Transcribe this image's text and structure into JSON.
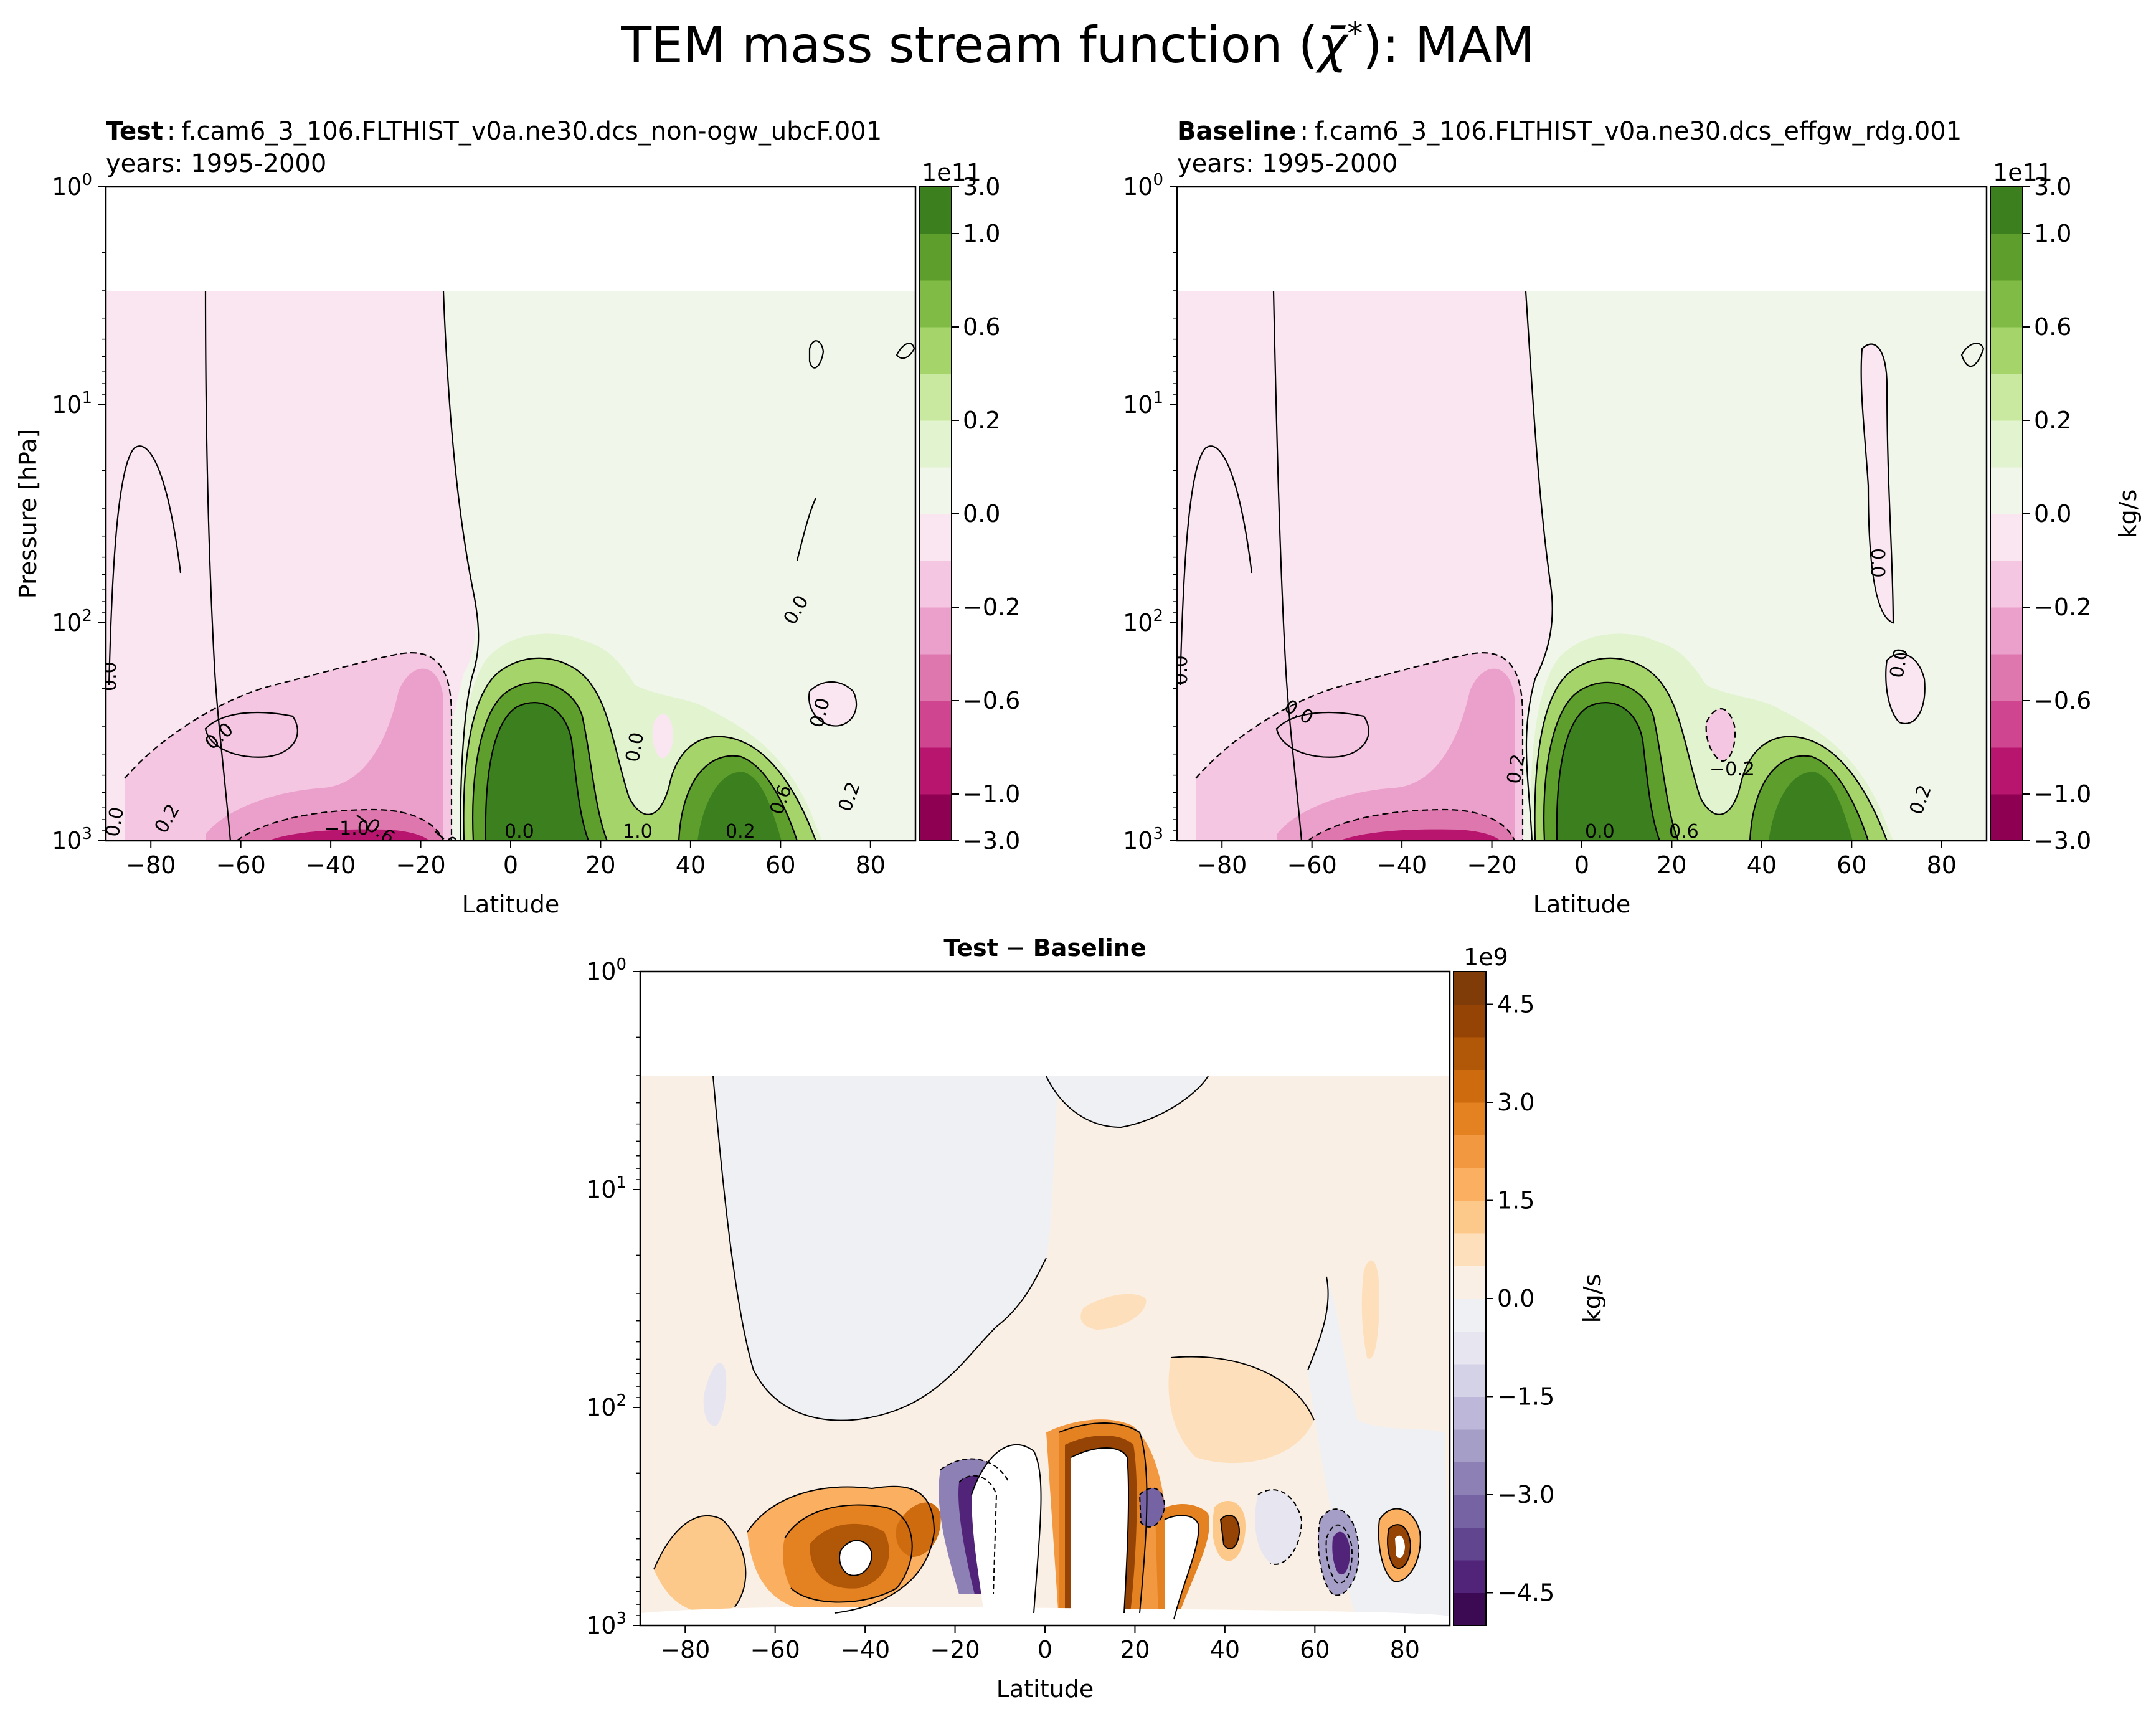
{
  "figure": {
    "title": "TEM mass stream function (χ̄*): MAM",
    "title_main": "TEM mass stream function (",
    "title_symbol": "χ̄",
    "title_sup": "*",
    "title_end": "): MAM"
  },
  "chart_data": [
    {
      "type": "heatmap",
      "panel": "test",
      "title_bold": "Test",
      "title_case": "f.cam6_3_106.FLTHIST_v0a.ne30.dcs_non-ogw_ubcF.001",
      "title_years": "years: 1995-2000",
      "xlabel": "Latitude",
      "ylabel": "Pressure [hPa]",
      "x_ticks": [
        "−80",
        "−60",
        "−40",
        "−20",
        "0",
        "20",
        "40",
        "60",
        "80"
      ],
      "x_tick_values": [
        -80,
        -60,
        -40,
        -20,
        0,
        20,
        40,
        60,
        80
      ],
      "xlim": [
        -90,
        90
      ],
      "y_scale": "log",
      "y_ticks": [
        "10",
        "10",
        "10",
        "10"
      ],
      "y_tick_exponents": [
        "0",
        "1",
        "2",
        "3"
      ],
      "ylim": [
        1000,
        1
      ],
      "data_top_hPa": 3,
      "colormap": "PiYG",
      "colorbar_label": "",
      "colorbar_multiplier": "1e11",
      "colorbar_levels": [
        -3.0,
        -1.0,
        -0.8,
        -0.6,
        -0.4,
        -0.2,
        -0.1,
        0.0,
        0.1,
        0.2,
        0.4,
        0.6,
        0.8,
        1.0,
        3.0
      ],
      "colorbar_ticks": [
        "3.0",
        "1.0",
        "0.6",
        "0.2",
        "0.0",
        "−0.2",
        "−0.6",
        "−1.0",
        "−3.0"
      ],
      "colorbar_tick_values": [
        3.0,
        1.0,
        0.6,
        0.2,
        0.0,
        -0.2,
        -0.6,
        -1.0,
        -3.0
      ],
      "contour_labels": [
        "0.0",
        "0.0",
        "0.0",
        "0.0",
        "0.0",
        "0.2",
        "0.0",
        "−0.6",
        "−1.0",
        "−0.6",
        "0.0",
        "1.0",
        "0.2",
        "0.6",
        "0.2"
      ],
      "features": [
        {
          "lat": 4,
          "pressure_hPa": 400,
          "value": 1.1
        },
        {
          "lat": 48,
          "pressure_hPa": 700,
          "value": 1.0
        },
        {
          "lat": -25,
          "pressure_hPa": 400,
          "value": -0.3
        },
        {
          "lat": -45,
          "pressure_hPa": 1000,
          "value": -0.9
        }
      ]
    },
    {
      "type": "heatmap",
      "panel": "baseline",
      "title_bold": "Baseline",
      "title_case": "f.cam6_3_106.FLTHIST_v0a.ne30.dcs_effgw_rdg.001",
      "title_years": "years: 1995-2000",
      "xlabel": "Latitude",
      "ylabel": "",
      "x_ticks": [
        "−80",
        "−60",
        "−40",
        "−20",
        "0",
        "20",
        "40",
        "60",
        "80"
      ],
      "x_tick_values": [
        -80,
        -60,
        -40,
        -20,
        0,
        20,
        40,
        60,
        80
      ],
      "xlim": [
        -90,
        90
      ],
      "y_scale": "log",
      "y_ticks": [
        "10",
        "10",
        "10",
        "10"
      ],
      "y_tick_exponents": [
        "0",
        "1",
        "2",
        "3"
      ],
      "ylim": [
        1000,
        1
      ],
      "data_top_hPa": 3,
      "colormap": "PiYG",
      "colorbar_label": "kg/s",
      "colorbar_multiplier": "1e11",
      "colorbar_levels": [
        -3.0,
        -1.0,
        -0.8,
        -0.6,
        -0.4,
        -0.2,
        -0.1,
        0.0,
        0.1,
        0.2,
        0.4,
        0.6,
        0.8,
        1.0,
        3.0
      ],
      "colorbar_ticks": [
        "3.0",
        "1.0",
        "0.6",
        "0.2",
        "0.0",
        "−0.2",
        "−0.6",
        "−1.0",
        "−3.0"
      ],
      "colorbar_tick_values": [
        3.0,
        1.0,
        0.6,
        0.2,
        0.0,
        -0.2,
        -0.6,
        -1.0,
        -3.0
      ],
      "contour_labels": [
        "0.0",
        "0.0",
        "0.0",
        "0.2",
        "0.0",
        "−0.2",
        "0.0",
        "0.6",
        "0.2"
      ],
      "features": [
        {
          "lat": 5,
          "pressure_hPa": 400,
          "value": 1.1
        },
        {
          "lat": 48,
          "pressure_hPa": 700,
          "value": 1.0
        },
        {
          "lat": 33,
          "pressure_hPa": 450,
          "value": -0.2
        },
        {
          "lat": -45,
          "pressure_hPa": 1000,
          "value": -0.9
        }
      ]
    },
    {
      "type": "heatmap",
      "panel": "difference",
      "title_bold_a": "Test",
      "title_mid": " − ",
      "title_bold_b": "Baseline",
      "xlabel": "Latitude",
      "ylabel": "",
      "x_ticks": [
        "−80",
        "−60",
        "−40",
        "−20",
        "0",
        "20",
        "40",
        "60",
        "80"
      ],
      "x_tick_values": [
        -80,
        -60,
        -40,
        -20,
        0,
        20,
        40,
        60,
        80
      ],
      "xlim": [
        -90,
        90
      ],
      "y_scale": "log",
      "y_ticks": [
        "10",
        "10",
        "10",
        "10"
      ],
      "y_tick_exponents": [
        "0",
        "1",
        "2",
        "3"
      ],
      "ylim": [
        1000,
        1
      ],
      "data_top_hPa": 3,
      "colormap": "PuOr_r",
      "colorbar_label": "kg/s",
      "colorbar_multiplier": "1e9",
      "colorbar_levels": [
        -5.0,
        -4.5,
        -4.0,
        -3.5,
        -3.0,
        -2.5,
        -2.0,
        -1.5,
        -1.0,
        -0.5,
        0.0,
        0.5,
        1.0,
        1.5,
        2.0,
        2.5,
        3.0,
        3.5,
        4.0,
        4.5,
        5.0
      ],
      "colorbar_ticks": [
        "4.5",
        "3.0",
        "1.5",
        "0.0",
        "−1.5",
        "−3.0",
        "−4.5"
      ],
      "colorbar_tick_values": [
        4.5,
        3.0,
        1.5,
        0.0,
        -1.5,
        -3.0,
        -4.5
      ],
      "features": [
        {
          "lat": -17,
          "pressure_hPa": 500,
          "value": "above range (white)"
        },
        {
          "lat": 5,
          "pressure_hPa": 400,
          "value": "above range (white)"
        },
        {
          "lat": 30,
          "pressure_hPa": 600,
          "value": "above range (white)"
        },
        {
          "lat": -40,
          "pressure_hPa": 420,
          "value": 4.5
        },
        {
          "lat": 62,
          "pressure_hPa": 550,
          "value": -4.0
        },
        {
          "lat": 78,
          "pressure_hPa": 450,
          "value": 3.5
        }
      ]
    }
  ],
  "colors": {
    "piyg": [
      "#8e0152",
      "#b8156f",
      "#d0458f",
      "#de77ae",
      "#eba0cc",
      "#f4c6e2",
      "#fae6f1",
      "#f1f6ea",
      "#e2f3cf",
      "#c9e8a0",
      "#a5d46a",
      "#80bc45",
      "#5e9e2d",
      "#3c7f1f",
      "#276419"
    ],
    "puor": [
      "#3b0a52",
      "#51247a",
      "#62458f",
      "#7563a4",
      "#8d80b5",
      "#a59ec7",
      "#bdb8d9",
      "#d4d2e6",
      "#e7e6f0",
      "#eff0f3",
      "#faefe4",
      "#fde0bb",
      "#fdc98b",
      "#faaf61",
      "#f29840",
      "#e48121",
      "#cd6b0e",
      "#b15708",
      "#964406",
      "#7f3b08"
    ],
    "black": "#000000",
    "white": "#ffffff"
  }
}
